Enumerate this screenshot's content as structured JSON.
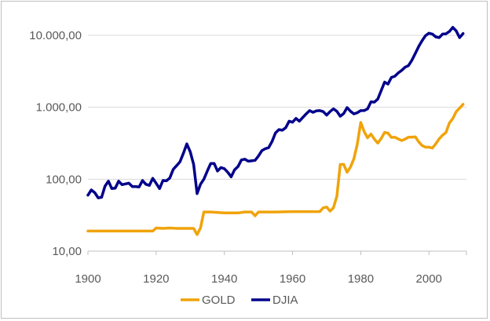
{
  "chart_data": {
    "type": "line",
    "title": "",
    "xlabel": "",
    "ylabel": "",
    "y_scale": "log",
    "xlim": [
      1900,
      2011
    ],
    "ylim": [
      10,
      10000
    ],
    "grid": "horizontal",
    "legend_position": "bottom",
    "x_tick_labels": [
      "1900",
      "1920",
      "1940",
      "1960",
      "1980",
      "2000"
    ],
    "x_ticks": [
      1900,
      1920,
      1940,
      1960,
      1980,
      2000
    ],
    "y_tick_labels": [
      "10,00",
      "100,00",
      "1.000,00",
      "10.000,00"
    ],
    "y_ticks": [
      10,
      100,
      1000,
      10000
    ],
    "series": [
      {
        "name": "GOLD",
        "color": "#f0a30a",
        "points": [
          [
            1900,
            19
          ],
          [
            1901,
            19
          ],
          [
            1910,
            19
          ],
          [
            1919,
            19
          ],
          [
            1920,
            21
          ],
          [
            1922,
            20.7
          ],
          [
            1924,
            21
          ],
          [
            1926,
            20.7
          ],
          [
            1928,
            20.7
          ],
          [
            1930,
            20.7
          ],
          [
            1931,
            20.7
          ],
          [
            1932,
            17
          ],
          [
            1933,
            21
          ],
          [
            1934,
            35
          ],
          [
            1936,
            35
          ],
          [
            1940,
            34
          ],
          [
            1944,
            34
          ],
          [
            1946,
            35
          ],
          [
            1948,
            35
          ],
          [
            1949,
            31
          ],
          [
            1950,
            35
          ],
          [
            1955,
            35
          ],
          [
            1960,
            35.5
          ],
          [
            1965,
            35.5
          ],
          [
            1968,
            35.5
          ],
          [
            1969,
            40
          ],
          [
            1970,
            41
          ],
          [
            1971,
            36
          ],
          [
            1972,
            40
          ],
          [
            1973,
            58
          ],
          [
            1974,
            160
          ],
          [
            1975,
            161
          ],
          [
            1976,
            125
          ],
          [
            1977,
            148
          ],
          [
            1978,
            193
          ],
          [
            1979,
            307
          ],
          [
            1980,
            615
          ],
          [
            1981,
            460
          ],
          [
            1982,
            376
          ],
          [
            1983,
            424
          ],
          [
            1984,
            360
          ],
          [
            1985,
            318
          ],
          [
            1986,
            368
          ],
          [
            1987,
            447
          ],
          [
            1988,
            437
          ],
          [
            1989,
            381
          ],
          [
            1990,
            384
          ],
          [
            1991,
            362
          ],
          [
            1992,
            344
          ],
          [
            1993,
            360
          ],
          [
            1994,
            384
          ],
          [
            1995,
            384
          ],
          [
            1996,
            388
          ],
          [
            1997,
            331
          ],
          [
            1998,
            294
          ],
          [
            1999,
            279
          ],
          [
            2000,
            279
          ],
          [
            2001,
            271
          ],
          [
            2002,
            310
          ],
          [
            2003,
            364
          ],
          [
            2004,
            410
          ],
          [
            2005,
            445
          ],
          [
            2006,
            604
          ],
          [
            2007,
            696
          ],
          [
            2008,
            872
          ],
          [
            2009,
            972
          ],
          [
            2010,
            1100
          ]
        ]
      },
      {
        "name": "DJIA",
        "color": "#00008b",
        "points": [
          [
            1900,
            60
          ],
          [
            1901,
            71
          ],
          [
            1902,
            65
          ],
          [
            1903,
            55
          ],
          [
            1904,
            56
          ],
          [
            1905,
            80
          ],
          [
            1906,
            94
          ],
          [
            1907,
            74
          ],
          [
            1908,
            75
          ],
          [
            1909,
            94
          ],
          [
            1910,
            84
          ],
          [
            1911,
            86
          ],
          [
            1912,
            88
          ],
          [
            1913,
            79
          ],
          [
            1914,
            79
          ],
          [
            1915,
            78
          ],
          [
            1916,
            96
          ],
          [
            1917,
            85
          ],
          [
            1918,
            82
          ],
          [
            1919,
            103
          ],
          [
            1920,
            88
          ],
          [
            1921,
            74
          ],
          [
            1922,
            96
          ],
          [
            1923,
            95
          ],
          [
            1924,
            104
          ],
          [
            1925,
            137
          ],
          [
            1926,
            154
          ],
          [
            1927,
            175
          ],
          [
            1928,
            230
          ],
          [
            1929,
            310
          ],
          [
            1930,
            240
          ],
          [
            1931,
            160
          ],
          [
            1932,
            63
          ],
          [
            1933,
            85
          ],
          [
            1934,
            100
          ],
          [
            1935,
            130
          ],
          [
            1936,
            165
          ],
          [
            1937,
            166
          ],
          [
            1938,
            130
          ],
          [
            1939,
            145
          ],
          [
            1940,
            140
          ],
          [
            1941,
            125
          ],
          [
            1942,
            108
          ],
          [
            1943,
            135
          ],
          [
            1944,
            150
          ],
          [
            1945,
            185
          ],
          [
            1946,
            190
          ],
          [
            1947,
            178
          ],
          [
            1948,
            180
          ],
          [
            1949,
            183
          ],
          [
            1950,
            210
          ],
          [
            1951,
            250
          ],
          [
            1952,
            265
          ],
          [
            1953,
            275
          ],
          [
            1954,
            335
          ],
          [
            1955,
            440
          ],
          [
            1956,
            490
          ],
          [
            1957,
            480
          ],
          [
            1958,
            520
          ],
          [
            1959,
            640
          ],
          [
            1960,
            620
          ],
          [
            1961,
            700
          ],
          [
            1962,
            640
          ],
          [
            1963,
            720
          ],
          [
            1964,
            810
          ],
          [
            1965,
            900
          ],
          [
            1966,
            850
          ],
          [
            1967,
            890
          ],
          [
            1968,
            900
          ],
          [
            1969,
            870
          ],
          [
            1970,
            780
          ],
          [
            1971,
            870
          ],
          [
            1972,
            950
          ],
          [
            1973,
            880
          ],
          [
            1974,
            750
          ],
          [
            1975,
            820
          ],
          [
            1976,
            990
          ],
          [
            1977,
            880
          ],
          [
            1978,
            810
          ],
          [
            1979,
            840
          ],
          [
            1980,
            900
          ],
          [
            1981,
            900
          ],
          [
            1982,
            950
          ],
          [
            1983,
            1190
          ],
          [
            1984,
            1180
          ],
          [
            1985,
            1300
          ],
          [
            1986,
            1700
          ],
          [
            1987,
            2240
          ],
          [
            1988,
            2100
          ],
          [
            1989,
            2600
          ],
          [
            1990,
            2700
          ],
          [
            1991,
            3000
          ],
          [
            1992,
            3250
          ],
          [
            1993,
            3600
          ],
          [
            1994,
            3800
          ],
          [
            1995,
            4500
          ],
          [
            1996,
            5600
          ],
          [
            1997,
            7000
          ],
          [
            1998,
            8400
          ],
          [
            1999,
            9900
          ],
          [
            2000,
            10700
          ],
          [
            2001,
            10400
          ],
          [
            2002,
            9500
          ],
          [
            2003,
            9300
          ],
          [
            2004,
            10400
          ],
          [
            2005,
            10500
          ],
          [
            2006,
            11300
          ],
          [
            2007,
            12900
          ],
          [
            2008,
            11500
          ],
          [
            2009,
            9300
          ],
          [
            2010,
            10600
          ]
        ]
      }
    ]
  }
}
